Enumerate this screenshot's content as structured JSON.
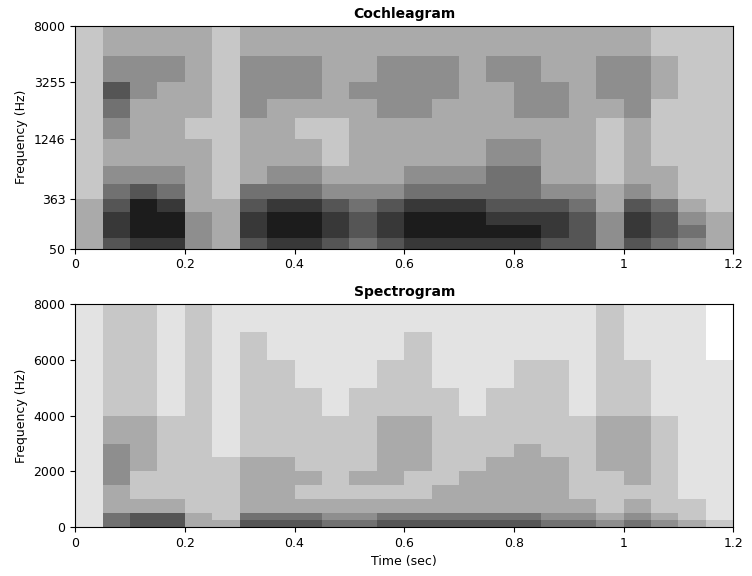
{
  "chart_data": [
    {
      "type": "heatmap",
      "title": "Cochleagram",
      "ylabel": "Frequency (Hz)",
      "color": "gray_r",
      "xlim": [
        0,
        1.2
      ],
      "xticks": [
        0,
        0.2,
        0.4,
        0.6,
        0.8,
        1,
        1.2
      ],
      "ylim": [
        50,
        8000
      ],
      "yticks": [
        50,
        363,
        1246,
        3255,
        8000
      ],
      "x_edges": [
        0,
        0.05,
        0.1,
        0.15,
        0.2,
        0.25,
        0.3,
        0.35,
        0.4,
        0.45,
        0.5,
        0.55,
        0.6,
        0.65,
        0.7,
        0.75,
        0.8,
        0.85,
        0.9,
        0.95,
        1,
        1.05,
        1.1,
        1.15,
        1.2
      ],
      "y_edges": [
        50,
        100,
        170,
        260,
        363,
        520,
        750,
        1246,
        1800,
        2500,
        3255,
        5000,
        8000
      ],
      "cell_range": [
        0,
        9
      ],
      "cells": [
        [
          3,
          6,
          7,
          7,
          4,
          3,
          6,
          7,
          7,
          6,
          5,
          6,
          7,
          7,
          7,
          7,
          7,
          6,
          6,
          4,
          6,
          5,
          4,
          3
        ],
        [
          3,
          7,
          8,
          8,
          4,
          3,
          7,
          8,
          8,
          7,
          6,
          7,
          8,
          8,
          8,
          8,
          8,
          7,
          6,
          4,
          7,
          6,
          5,
          3
        ],
        [
          3,
          7,
          8,
          8,
          4,
          3,
          7,
          8,
          8,
          7,
          6,
          7,
          8,
          8,
          8,
          7,
          7,
          7,
          6,
          4,
          7,
          6,
          4,
          3
        ],
        [
          3,
          6,
          8,
          7,
          3,
          3,
          6,
          7,
          7,
          6,
          5,
          6,
          7,
          7,
          7,
          6,
          6,
          6,
          5,
          3,
          6,
          5,
          3,
          2
        ],
        [
          2,
          5,
          6,
          5,
          3,
          2,
          5,
          5,
          5,
          4,
          4,
          4,
          5,
          5,
          5,
          5,
          5,
          4,
          4,
          3,
          4,
          3,
          2,
          2
        ],
        [
          2,
          4,
          4,
          4,
          3,
          2,
          3,
          4,
          4,
          3,
          3,
          3,
          4,
          4,
          4,
          5,
          5,
          3,
          3,
          2,
          3,
          3,
          2,
          2
        ],
        [
          2,
          3,
          3,
          3,
          3,
          2,
          3,
          3,
          3,
          2,
          3,
          3,
          3,
          3,
          3,
          4,
          4,
          3,
          3,
          2,
          3,
          2,
          2,
          2
        ],
        [
          2,
          4,
          3,
          3,
          2,
          2,
          3,
          3,
          2,
          2,
          3,
          3,
          3,
          3,
          3,
          3,
          3,
          3,
          3,
          2,
          3,
          2,
          2,
          2
        ],
        [
          2,
          5,
          3,
          3,
          3,
          2,
          4,
          3,
          3,
          3,
          3,
          4,
          4,
          3,
          3,
          3,
          4,
          4,
          3,
          3,
          4,
          2,
          2,
          2
        ],
        [
          2,
          6,
          4,
          3,
          3,
          2,
          4,
          4,
          4,
          3,
          4,
          4,
          4,
          4,
          3,
          3,
          4,
          4,
          3,
          4,
          4,
          3,
          2,
          2
        ],
        [
          2,
          4,
          4,
          4,
          3,
          2,
          4,
          4,
          4,
          3,
          3,
          4,
          4,
          4,
          3,
          4,
          4,
          3,
          3,
          4,
          4,
          3,
          2,
          2
        ],
        [
          2,
          3,
          3,
          3,
          3,
          2,
          3,
          3,
          3,
          3,
          3,
          3,
          3,
          3,
          3,
          3,
          3,
          3,
          3,
          3,
          3,
          2,
          2,
          2
        ]
      ]
    },
    {
      "type": "heatmap",
      "title": "Spectrogram",
      "xlabel": "Time (sec)",
      "ylabel": "Frequency (Hz)",
      "color": "gray_r",
      "xlim": [
        0,
        1.2
      ],
      "xticks": [
        0,
        0.2,
        0.4,
        0.6,
        0.8,
        1,
        1.2
      ],
      "ylim": [
        0,
        8000
      ],
      "yticks": [
        0,
        2000,
        4000,
        6000,
        8000
      ],
      "x_edges": [
        0,
        0.05,
        0.1,
        0.15,
        0.2,
        0.25,
        0.3,
        0.35,
        0.4,
        0.45,
        0.5,
        0.55,
        0.6,
        0.65,
        0.7,
        0.75,
        0.8,
        0.85,
        0.9,
        0.95,
        1,
        1.05,
        1.1,
        1.15,
        1.2
      ],
      "y_edges": [
        0,
        250,
        500,
        1000,
        1500,
        2000,
        2500,
        3000,
        4000,
        5000,
        6000,
        7000,
        8000
      ],
      "cell_range": [
        0,
        9
      ],
      "cells": [
        [
          1,
          5,
          6,
          6,
          3,
          3,
          6,
          6,
          6,
          5,
          5,
          6,
          6,
          6,
          6,
          6,
          6,
          5,
          5,
          4,
          5,
          4,
          3,
          2
        ],
        [
          1,
          5,
          6,
          6,
          3,
          2,
          5,
          5,
          5,
          4,
          4,
          5,
          5,
          5,
          5,
          5,
          5,
          4,
          4,
          3,
          4,
          3,
          2,
          1
        ],
        [
          1,
          3,
          3,
          3,
          2,
          2,
          3,
          3,
          3,
          3,
          3,
          3,
          3,
          3,
          3,
          3,
          3,
          3,
          3,
          2,
          3,
          2,
          2,
          1
        ],
        [
          1,
          3,
          2,
          2,
          2,
          2,
          3,
          3,
          2,
          2,
          2,
          2,
          2,
          3,
          3,
          3,
          3,
          3,
          2,
          2,
          2,
          2,
          1,
          1
        ],
        [
          1,
          4,
          2,
          2,
          2,
          2,
          3,
          3,
          3,
          2,
          3,
          3,
          2,
          2,
          3,
          3,
          3,
          3,
          2,
          2,
          3,
          2,
          1,
          1
        ],
        [
          1,
          4,
          3,
          2,
          2,
          2,
          3,
          3,
          2,
          2,
          2,
          3,
          3,
          2,
          2,
          3,
          3,
          3,
          2,
          3,
          3,
          2,
          1,
          1
        ],
        [
          1,
          4,
          3,
          2,
          2,
          1,
          2,
          2,
          2,
          2,
          2,
          3,
          3,
          2,
          2,
          2,
          3,
          2,
          2,
          3,
          3,
          2,
          1,
          1
        ],
        [
          1,
          3,
          3,
          2,
          2,
          1,
          2,
          2,
          2,
          2,
          2,
          3,
          3,
          2,
          2,
          2,
          2,
          2,
          2,
          3,
          3,
          2,
          1,
          1
        ],
        [
          1,
          2,
          2,
          1,
          2,
          1,
          2,
          2,
          2,
          1,
          2,
          2,
          2,
          2,
          1,
          2,
          2,
          2,
          1,
          2,
          2,
          1,
          1,
          1
        ],
        [
          1,
          2,
          2,
          1,
          2,
          1,
          2,
          2,
          1,
          1,
          1,
          2,
          2,
          1,
          1,
          1,
          2,
          2,
          1,
          2,
          2,
          1,
          1,
          1
        ],
        [
          1,
          2,
          2,
          1,
          2,
          1,
          2,
          1,
          1,
          1,
          1,
          1,
          2,
          1,
          1,
          1,
          1,
          1,
          1,
          2,
          1,
          1,
          1,
          0
        ],
        [
          1,
          2,
          2,
          1,
          2,
          1,
          1,
          1,
          1,
          1,
          1,
          1,
          1,
          1,
          1,
          1,
          1,
          1,
          1,
          2,
          1,
          1,
          1,
          0
        ]
      ]
    }
  ]
}
